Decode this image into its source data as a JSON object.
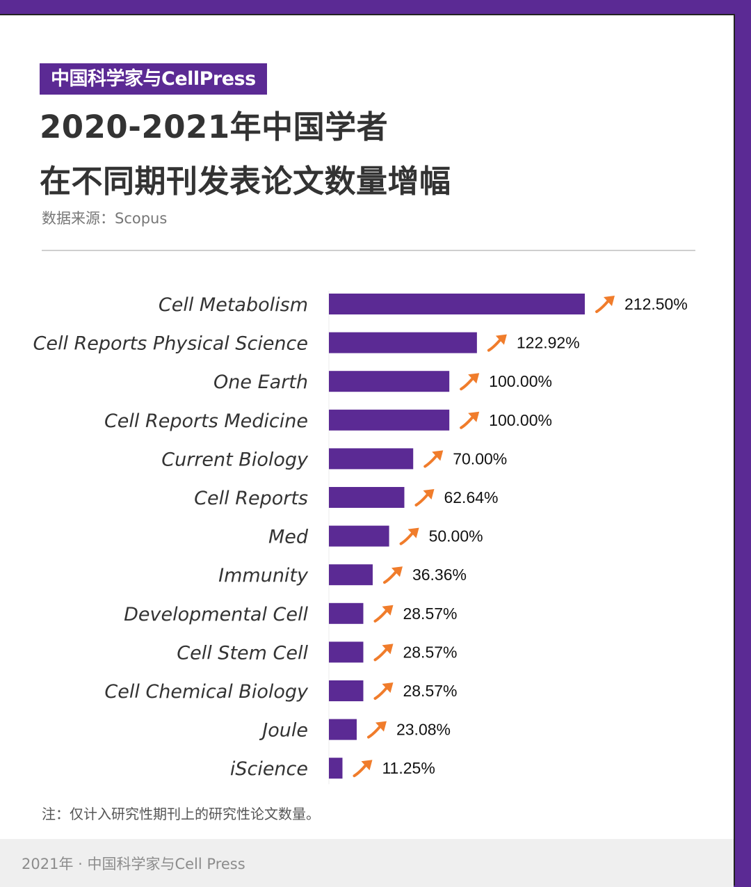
{
  "tag": "中国科学家与CellPress",
  "title_line1": "2020-2021年中国学者",
  "title_line2": "在不同期刊发表论文数量增幅",
  "source": "数据来源：Scopus",
  "note": "注：仅计入研究性期刊上的研究性论文数量。",
  "footer": "2021年 · 中国科学家与Cell Press",
  "colors": {
    "bar": "#5b2a94",
    "arrow": "#f07c2b",
    "background": "#5b2a94"
  },
  "arrow_icon": "trending-up-arrow-icon",
  "chart_data": {
    "type": "bar",
    "orientation": "horizontal",
    "categories": [
      "Cell Metabolism",
      "Cell Reports Physical Science",
      "One Earth",
      "Cell Reports Medicine",
      "Current Biology",
      "Cell Reports",
      "Med",
      "Immunity",
      "Developmental Cell",
      "Cell Stem Cell",
      "Cell Chemical Biology",
      "Joule",
      "iScience"
    ],
    "values": [
      212.5,
      122.92,
      100.0,
      100.0,
      70.0,
      62.64,
      50.0,
      36.36,
      28.57,
      28.57,
      28.57,
      23.08,
      11.25
    ],
    "labels": [
      "212.50%",
      "122.92%",
      "100.00%",
      "100.00%",
      "70.00%",
      "62.64%",
      "50.00%",
      "36.36%",
      "28.57%",
      "28.57%",
      "28.57%",
      "23.08%",
      "11.25%"
    ],
    "xlim": [
      0,
      212.5
    ],
    "grid": false,
    "legend": "none"
  }
}
